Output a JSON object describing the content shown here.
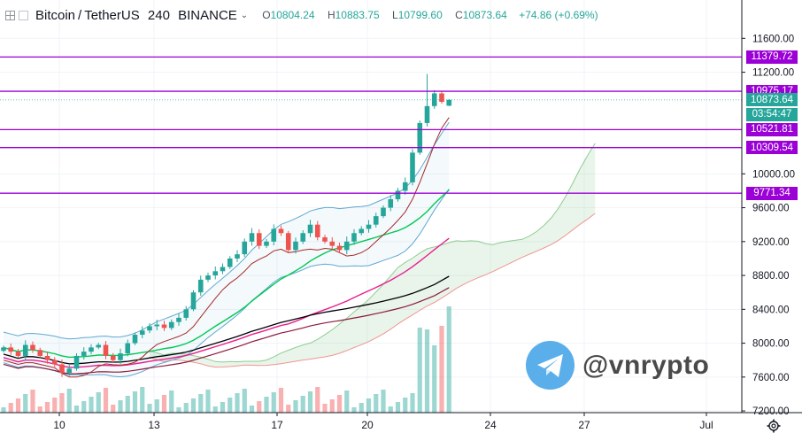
{
  "header": {
    "symbol": "Bitcoin",
    "separator": "/",
    "quote": "TetherUS",
    "interval": "240",
    "exchange": "BINANCE",
    "ohlc": [
      {
        "label": "O",
        "value": "10804.24"
      },
      {
        "label": "H",
        "value": "10883.75"
      },
      {
        "label": "L",
        "value": "10799.60"
      },
      {
        "label": "C",
        "value": "10873.64"
      }
    ],
    "change": "+74.86 (+0.69%)"
  },
  "price_badges": {
    "last_price": "10873.64",
    "countdown": "03:54:47"
  },
  "watermark": {
    "text": "@vnrypto",
    "icon": "telegram-icon"
  },
  "colors": {
    "up": "#26a69a",
    "down": "#ef5350",
    "level_line": "#9b00d6",
    "cloud_bull": "#4caf50",
    "cloud_bear": "#ef5350",
    "ma_green": "#00c853",
    "ma_pink": "#e91e8f",
    "ma_black": "#000000",
    "ma_maroon": "#8b1a3c",
    "bollinger": "#5fa8d3"
  },
  "chart_data": {
    "type": "candlestick",
    "symbol": "BTCUSDT",
    "interval": "240",
    "ylim": [
      7180,
      11760
    ],
    "y_ticks": [
      7200,
      7600,
      8000,
      8400,
      8800,
      9200,
      9600,
      10000,
      11200,
      11600
    ],
    "y_tick_labels": [
      "7200.00",
      "7600.00",
      "8000.00",
      "8400.00",
      "8800.00",
      "9200.00",
      "9600.00",
      "10000.00",
      "11200.00",
      "11600.00"
    ],
    "x_ticks": [
      "10",
      "13",
      "17",
      "20",
      "24",
      "27",
      "Jul"
    ],
    "horizontal_levels": [
      {
        "value": 11379.72,
        "label": "11379.72"
      },
      {
        "value": 10975.17,
        "label": "10975.17"
      },
      {
        "value": 10521.81,
        "label": "10521.81"
      },
      {
        "value": 10309.54,
        "label": "10309.54"
      },
      {
        "value": 9771.34,
        "label": "9771.34"
      }
    ],
    "last": {
      "open": 10804.24,
      "high": 10883.75,
      "low": 10799.6,
      "close": 10873.64,
      "change": 74.86,
      "change_pct": 0.69
    },
    "close_series_approx": [
      7950,
      7900,
      7850,
      7980,
      7920,
      7850,
      7800,
      7750,
      7650,
      7700,
      7850,
      7900,
      7950,
      7980,
      7850,
      7800,
      7880,
      8000,
      8100,
      8150,
      8200,
      8220,
      8180,
      8250,
      8300,
      8400,
      8600,
      8750,
      8800,
      8850,
      8900,
      9000,
      9050,
      9200,
      9300,
      9150,
      9200,
      9350,
      9300,
      9100,
      9200,
      9300,
      9400,
      9250,
      9200,
      9150,
      9100,
      9200,
      9300,
      9350,
      9400,
      9500,
      9600,
      9700,
      9800,
      9900,
      10250,
      10600,
      10800,
      10950,
      10850,
      10874
    ]
  }
}
